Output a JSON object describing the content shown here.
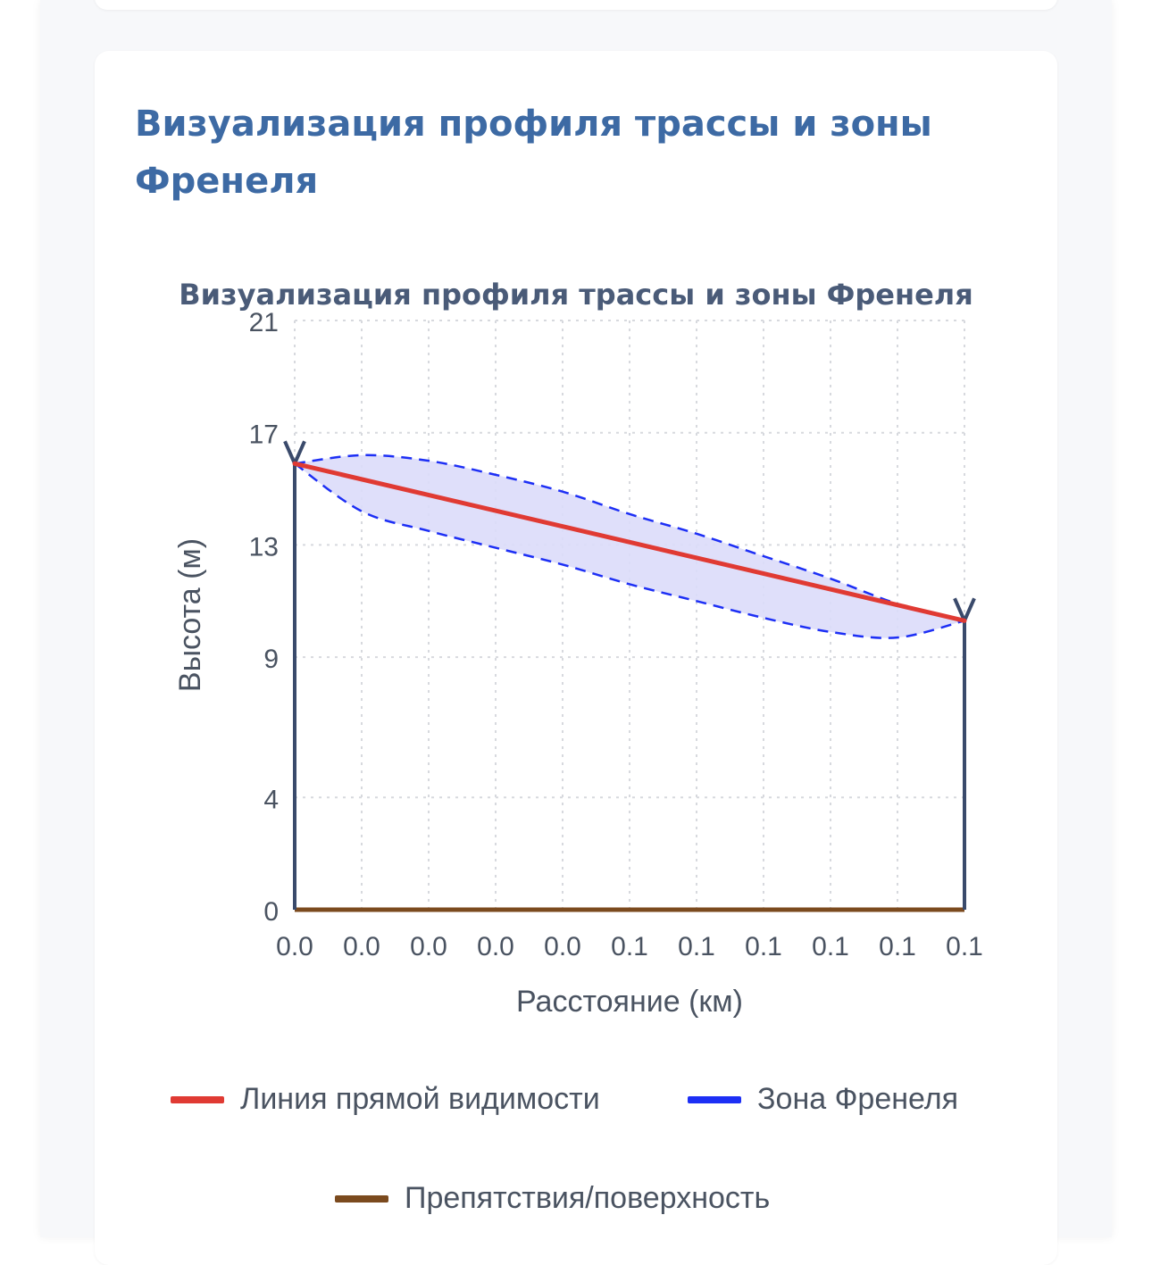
{
  "section": {
    "title": "Визуализация профиля трассы и зоны Френеля"
  },
  "colors": {
    "title": "#3d6aa4",
    "los": "#e03a33",
    "fresnel": "#1d2ff5",
    "fresnel_fill": "#dcdcf9",
    "obstacle": "#7b4a1e",
    "antenna": "#3a4a6b",
    "grid": "#d7d9de"
  },
  "chart_data": {
    "type": "line",
    "title": "Визуализация профиля трассы и зоны Френеля",
    "xlabel": "Расстояние (км)",
    "ylabel": "Высота (м)",
    "x_tick_labels": [
      "0.0",
      "0.0",
      "0.0",
      "0.0",
      "0.0",
      "0.1",
      "0.1",
      "0.1",
      "0.1",
      "0.1",
      "0.1"
    ],
    "y_tick_labels": [
      "0",
      "4",
      "9",
      "13",
      "17",
      "21"
    ],
    "ylim": [
      0,
      21
    ],
    "grid": true,
    "legend_position": "bottom",
    "antennas": [
      {
        "x_index": 0,
        "height": 15.9
      },
      {
        "x_index": 10,
        "height": 10.3
      }
    ],
    "series": [
      {
        "name": "Линия прямой видимости",
        "x_index": [
          0,
          10
        ],
        "values": [
          15.9,
          10.3
        ]
      },
      {
        "name": "Зона Френеля",
        "x_index": [
          0,
          1,
          2,
          3,
          4,
          5,
          6,
          7,
          8,
          9,
          10
        ],
        "upper": [
          15.9,
          16.2,
          16.0,
          15.5,
          14.9,
          14.1,
          13.4,
          12.6,
          11.8,
          10.9,
          10.3
        ],
        "lower": [
          15.9,
          14.2,
          13.5,
          12.9,
          12.3,
          11.6,
          11.0,
          10.4,
          9.9,
          9.7,
          10.3
        ]
      },
      {
        "name": "Препятствия/поверхность",
        "x_index": [
          0,
          10
        ],
        "values": [
          0,
          0
        ]
      }
    ]
  }
}
